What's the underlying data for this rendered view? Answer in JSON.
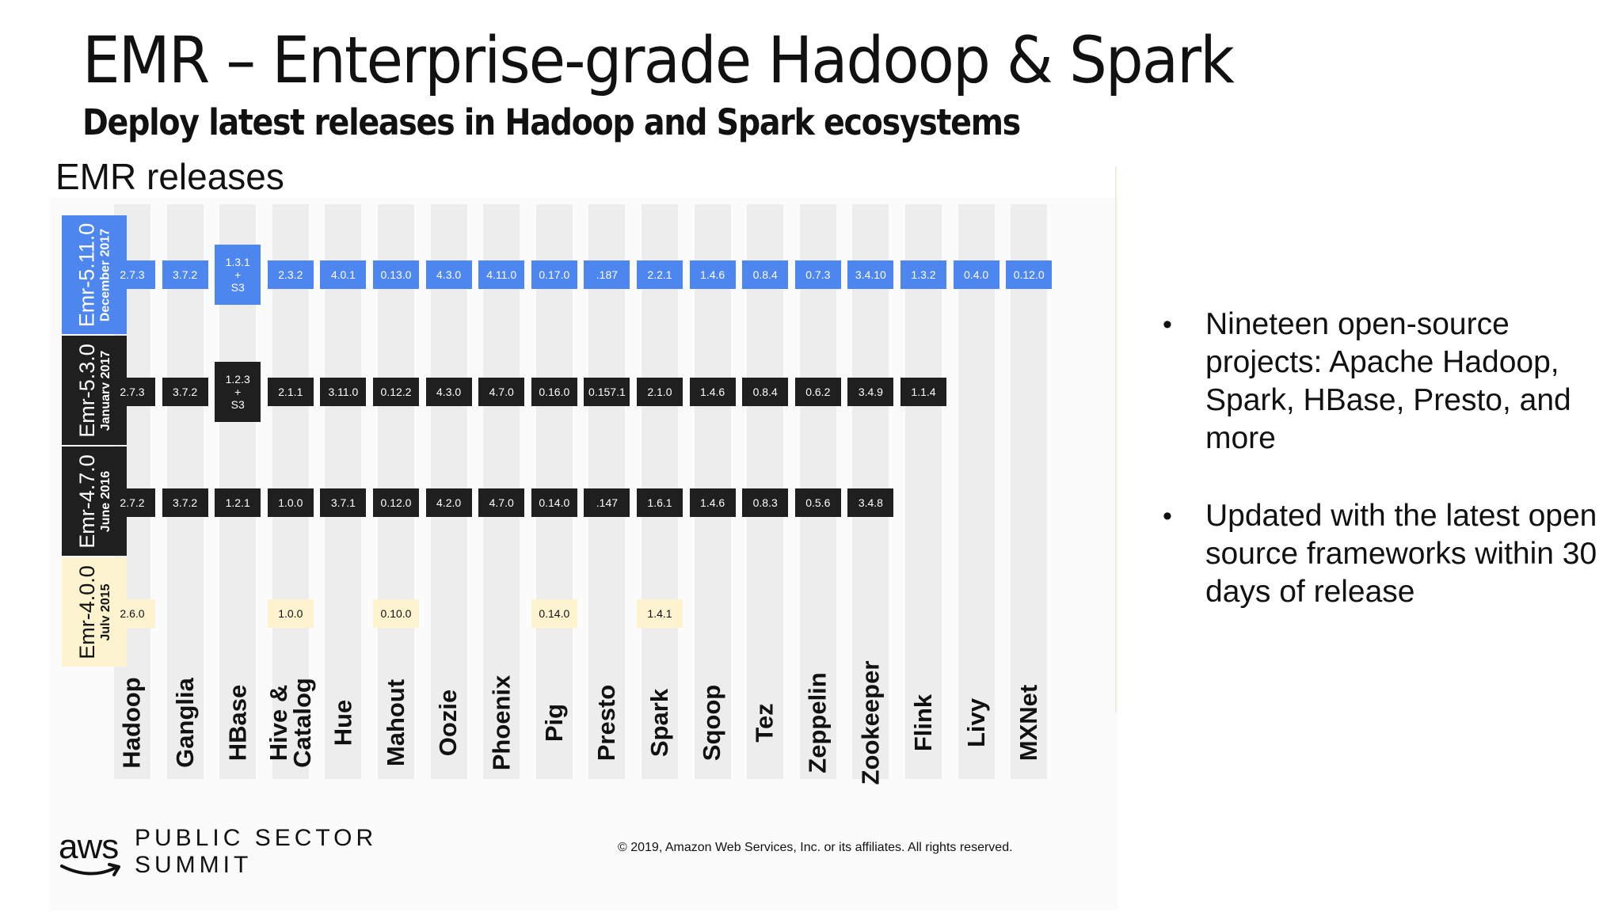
{
  "slide": {
    "title": "EMR – Enterprise-grade Hadoop & Spark",
    "subtitle": "Deploy latest releases in Hadoop and Spark ecosystems",
    "section_label": "EMR releases"
  },
  "projects": [
    "Hadoop",
    "Ganglia",
    "HBase",
    "Hive &\nCatalog",
    "Hue",
    "Mahout",
    "Oozie",
    "Phoenix",
    "Pig",
    "Presto",
    "Spark",
    "Sqoop",
    "Tez",
    "Zeppelin",
    "Zookeeper",
    "Flink",
    "Livy",
    "MXNet"
  ],
  "releases": [
    {
      "name": "Emr-5.11.0",
      "date": "December 2017",
      "bg": "#4d86ee",
      "fg": "#ffffff",
      "versions": [
        "2.7.3",
        "3.7.2",
        "1.3.1\n+\nS3",
        "2.3.2",
        "4.0.1",
        "0.13.0",
        "4.3.0",
        "4.11.0",
        "0.17.0",
        ".187",
        "2.2.1",
        "1.4.6",
        "0.8.4",
        "0.7.3",
        "3.4.10",
        "1.3.2",
        "0.4.0",
        "0.12.0"
      ]
    },
    {
      "name": "Emr-5.3.0",
      "date": "January 2017",
      "bg": "#1f1f1f",
      "fg": "#ffffff",
      "versions": [
        "2.7.3",
        "3.7.2",
        "1.2.3\n+\nS3",
        "2.1.1",
        "3.11.0",
        "0.12.2",
        "4.3.0",
        "4.7.0",
        "0.16.0",
        "0.157.1",
        "2.1.0",
        "1.4.6",
        "0.8.4",
        "0.6.2",
        "3.4.9",
        "1.1.4",
        "",
        ""
      ]
    },
    {
      "name": "Emr-4.7.0",
      "date": "June 2016",
      "bg": "#1f1f1f",
      "fg": "#ffffff",
      "versions": [
        "2.7.2",
        "3.7.2",
        "1.2.1",
        "1.0.0",
        "3.7.1",
        "0.12.0",
        "4.2.0",
        "4.7.0",
        "0.14.0",
        ".147",
        "1.6.1",
        "1.4.6",
        "0.8.3",
        "0.5.6",
        "3.4.8",
        "",
        "",
        ""
      ]
    },
    {
      "name": "Emr-4.0.0",
      "date": "July 2015",
      "bg": "#fdf3cf",
      "fg": "#111111",
      "versions": [
        "2.6.0",
        "",
        "",
        "1.0.0",
        "",
        "0.10.0",
        "",
        "",
        "0.14.0",
        "",
        "1.4.1",
        "",
        "",
        "",
        "",
        "",
        "",
        ""
      ]
    }
  ],
  "bullets": [
    "Nineteen open-source projects: Apache Hadoop, Spark, HBase, Presto, and more",
    "Updated with the latest open source frameworks within 30 days of release"
  ],
  "footer": {
    "brand": "aws",
    "event_line1": "PUBLIC SECTOR",
    "event_line2": "SUMMIT",
    "copyright": "© 2019, Amazon Web Services, Inc. or its affiliates. All rights reserved."
  }
}
